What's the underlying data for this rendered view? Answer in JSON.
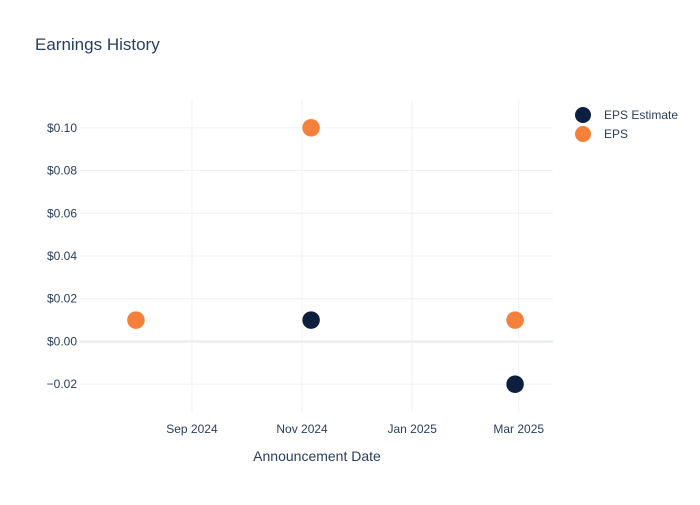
{
  "chart_data": {
    "type": "scatter",
    "title": "Earnings History",
    "xlabel": "Announcement Date",
    "ylabel": "",
    "x_ticks": [
      "Sep 2024",
      "Nov 2024",
      "Jan 2025",
      "Mar 2025"
    ],
    "y_ticks": [
      "$0.10",
      "$0.08",
      "$0.06",
      "$0.04",
      "$0.02",
      "$0.00",
      "−0.02"
    ],
    "y_tick_values": [
      0.1,
      0.08,
      0.06,
      0.04,
      0.02,
      0.0,
      -0.02
    ],
    "x_tick_dates": [
      "2024-09-01",
      "2024-11-01",
      "2025-01-01",
      "2025-03-01"
    ],
    "xlim": [
      "2024-07-01",
      "2025-03-20"
    ],
    "ylim": [
      -0.033,
      0.113
    ],
    "grid": true,
    "legend_position": "top-right",
    "series": [
      {
        "name": "EPS Estimate",
        "color": "#0d1f3f",
        "points": [
          {
            "x": "2024-08-01",
            "y": 0.01
          },
          {
            "x": "2024-11-06",
            "y": 0.01
          },
          {
            "x": "2025-02-27",
            "y": -0.02
          }
        ]
      },
      {
        "name": "EPS",
        "color": "#f5803a",
        "points": [
          {
            "x": "2024-08-01",
            "y": 0.01
          },
          {
            "x": "2024-11-06",
            "y": 0.1
          },
          {
            "x": "2025-02-27",
            "y": 0.01
          }
        ]
      }
    ]
  }
}
